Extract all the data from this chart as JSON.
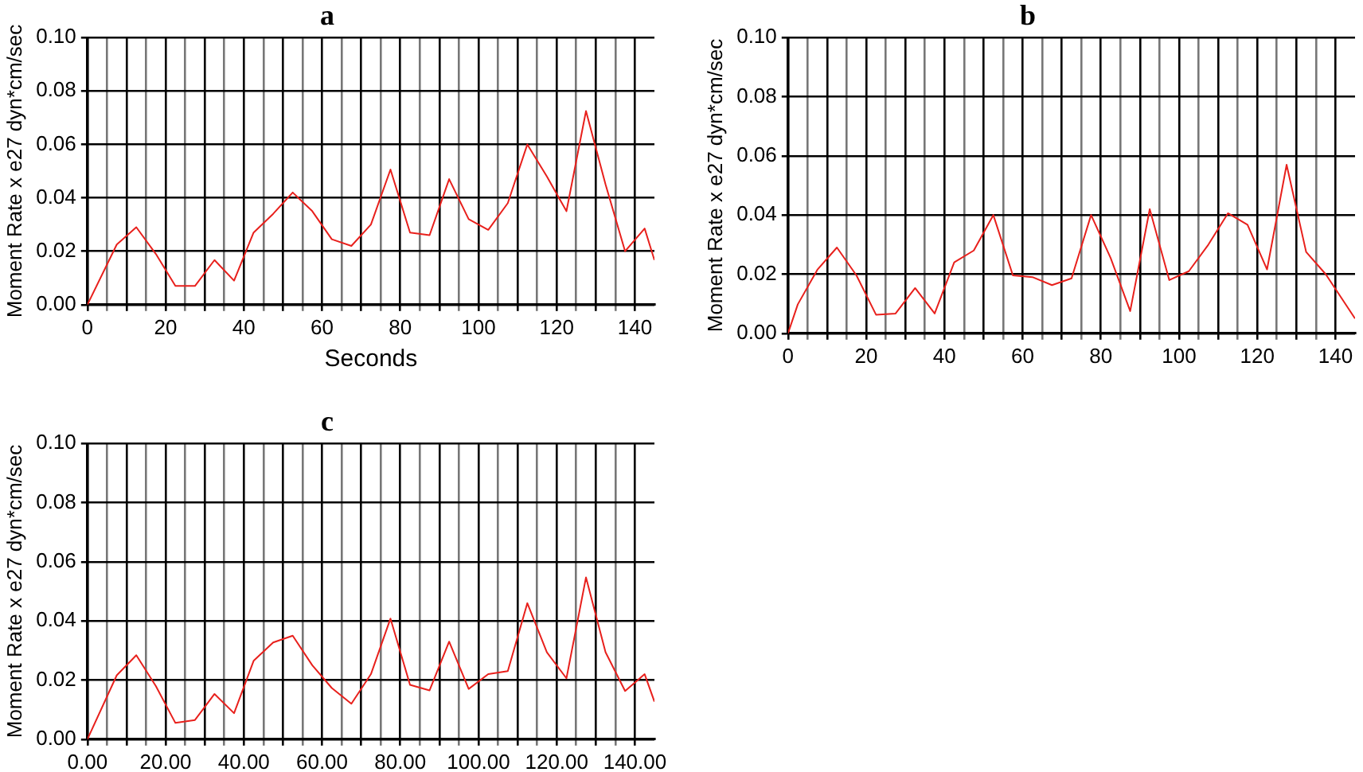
{
  "chart_data": [
    {
      "type": "line",
      "title": "a",
      "xlabel": "Seconds",
      "ylabel": "Moment Rate x e27 dyn*cm/sec",
      "x": [
        0,
        7.5,
        12.5,
        17.5,
        22.5,
        27.5,
        32.5,
        37.5,
        42.5,
        47.5,
        52.5,
        57.5,
        62.5,
        67.5,
        72.5,
        77.5,
        82.5,
        87.5,
        92.5,
        97.5,
        102.5,
        107.5,
        112.5,
        117.5,
        122.5,
        127.5,
        132.5,
        137.5,
        142.5,
        145
      ],
      "series": [
        {
          "color": "#e8201c",
          "values": [
            0,
            0.0225,
            0.029,
            0.019,
            0.007,
            0.007,
            0.0167,
            0.009,
            0.027,
            0.034,
            0.042,
            0.035,
            0.0245,
            0.022,
            0.03,
            0.0506,
            0.027,
            0.026,
            0.047,
            0.032,
            0.028,
            0.038,
            0.06,
            0.048,
            0.035,
            0.0725,
            0.045,
            0.02,
            0.0285,
            0.0167
          ]
        }
      ],
      "xlim": [
        0,
        145
      ],
      "xticks": [
        0,
        {
          "value": 5,
          "label": null
        },
        {
          "value": 10,
          "label": null
        },
        {
          "value": 15,
          "label": null
        },
        20,
        {
          "value": 25,
          "label": null
        },
        {
          "value": 30,
          "label": null
        },
        {
          "value": 35,
          "label": null
        },
        40,
        {
          "value": 45,
          "label": null
        },
        {
          "value": 50,
          "label": null
        },
        {
          "value": 55,
          "label": null
        },
        60,
        {
          "value": 65,
          "label": null
        },
        {
          "value": 70,
          "label": null
        },
        {
          "value": 75,
          "label": null
        },
        80,
        {
          "value": 85,
          "label": null
        },
        {
          "value": 90,
          "label": null
        },
        {
          "value": 95,
          "label": null
        },
        100,
        {
          "value": 105,
          "label": null
        },
        {
          "value": 110,
          "label": null
        },
        {
          "value": 115,
          "label": null
        },
        120,
        {
          "value": 125,
          "label": null
        },
        {
          "value": 130,
          "label": null
        },
        {
          "value": 135,
          "label": null
        },
        140
      ],
      "ylim": [
        0,
        0.1
      ],
      "yticks": [
        {
          "value": 0,
          "label": "0.00"
        },
        {
          "value": 0.02,
          "label": "0.02"
        },
        {
          "value": 0.04,
          "label": "0.04"
        },
        {
          "value": 0.06,
          "label": "0.06"
        },
        {
          "value": 0.08,
          "label": "0.08"
        },
        {
          "value": 0.1,
          "label": "0.10"
        }
      ],
      "grid": true,
      "marker": "none",
      "line_style": "solid"
    },
    {
      "type": "line",
      "title": "b",
      "ylabel": "Moment Rate x e27 dyn*cm/sec",
      "x": [
        0,
        2.5,
        7.5,
        12.5,
        17.5,
        22.5,
        27.5,
        32.5,
        37.5,
        42.5,
        47.5,
        52.5,
        57.5,
        62.5,
        67.5,
        72.5,
        77.5,
        82.5,
        87.5,
        92.5,
        97.5,
        102.5,
        107.5,
        112.5,
        117.5,
        122.5,
        127.5,
        132.5,
        137.5,
        145
      ],
      "series": [
        {
          "color": "#e8201c",
          "values": [
            0,
            0.0098,
            0.0215,
            0.029,
            0.0196,
            0.0063,
            0.0067,
            0.0153,
            0.0067,
            0.024,
            0.028,
            0.04,
            0.0196,
            0.019,
            0.0163,
            0.0186,
            0.04,
            0.0255,
            0.0075,
            0.042,
            0.018,
            0.021,
            0.03,
            0.0406,
            0.0367,
            0.0216,
            0.057,
            0.0275,
            0.02,
            0.005
          ]
        }
      ],
      "xlim": [
        0,
        145
      ],
      "xticks": [
        0,
        {
          "value": 5,
          "label": null
        },
        {
          "value": 10,
          "label": null
        },
        {
          "value": 15,
          "label": null
        },
        20,
        {
          "value": 25,
          "label": null
        },
        {
          "value": 30,
          "label": null
        },
        {
          "value": 35,
          "label": null
        },
        40,
        {
          "value": 45,
          "label": null
        },
        {
          "value": 50,
          "label": null
        },
        {
          "value": 55,
          "label": null
        },
        60,
        {
          "value": 65,
          "label": null
        },
        {
          "value": 70,
          "label": null
        },
        {
          "value": 75,
          "label": null
        },
        80,
        {
          "value": 85,
          "label": null
        },
        {
          "value": 90,
          "label": null
        },
        {
          "value": 95,
          "label": null
        },
        100,
        {
          "value": 105,
          "label": null
        },
        {
          "value": 110,
          "label": null
        },
        {
          "value": 115,
          "label": null
        },
        120,
        {
          "value": 125,
          "label": null
        },
        {
          "value": 130,
          "label": null
        },
        {
          "value": 135,
          "label": null
        },
        140
      ],
      "ylim": [
        0,
        0.1
      ],
      "yticks": [
        {
          "value": 0,
          "label": "0.00"
        },
        {
          "value": 0.02,
          "label": "0.02"
        },
        {
          "value": 0.04,
          "label": "0.04"
        },
        {
          "value": 0.06,
          "label": "0.06"
        },
        {
          "value": 0.08,
          "label": "0.08"
        },
        {
          "value": 0.1,
          "label": "0.10"
        }
      ],
      "grid": true,
      "marker": "none",
      "line_style": "solid"
    },
    {
      "type": "line",
      "title": "c",
      "ylabel": "Moment Rate x e27 dyn*cm/sec",
      "x": [
        0,
        7.5,
        12.5,
        17.5,
        22.5,
        27.5,
        32.5,
        37.5,
        42.5,
        47.5,
        52.5,
        57.5,
        62.5,
        67.5,
        72.5,
        77.5,
        82.5,
        87.5,
        92.5,
        97.5,
        102.5,
        107.5,
        112.5,
        117.5,
        122.5,
        127.5,
        132.5,
        137.5,
        142.5,
        145
      ],
      "series": [
        {
          "color": "#e8201c",
          "values": [
            0,
            0.0216,
            0.0284,
            0.018,
            0.0055,
            0.0065,
            0.0153,
            0.0088,
            0.0265,
            0.0327,
            0.035,
            0.025,
            0.0173,
            0.012,
            0.022,
            0.0408,
            0.0184,
            0.0165,
            0.033,
            0.017,
            0.022,
            0.023,
            0.046,
            0.0294,
            0.0206,
            0.0547,
            0.0294,
            0.0163,
            0.022,
            0.0127
          ]
        }
      ],
      "xlim": [
        0,
        145
      ],
      "xticks": [
        {
          "value": 0,
          "label": "0.00"
        },
        {
          "value": 5,
          "label": null
        },
        {
          "value": 10,
          "label": null
        },
        {
          "value": 15,
          "label": null
        },
        {
          "value": 20,
          "label": "20.00"
        },
        {
          "value": 25,
          "label": null
        },
        {
          "value": 30,
          "label": null
        },
        {
          "value": 35,
          "label": null
        },
        {
          "value": 40,
          "label": "40.00"
        },
        {
          "value": 45,
          "label": null
        },
        {
          "value": 50,
          "label": null
        },
        {
          "value": 55,
          "label": null
        },
        {
          "value": 60,
          "label": "60.00"
        },
        {
          "value": 65,
          "label": null
        },
        {
          "value": 70,
          "label": null
        },
        {
          "value": 75,
          "label": null
        },
        {
          "value": 80,
          "label": "80.00"
        },
        {
          "value": 85,
          "label": null
        },
        {
          "value": 90,
          "label": null
        },
        {
          "value": 95,
          "label": null
        },
        {
          "value": 100,
          "label": "100.00"
        },
        {
          "value": 105,
          "label": null
        },
        {
          "value": 110,
          "label": null
        },
        {
          "value": 115,
          "label": null
        },
        {
          "value": 120,
          "label": "120.00"
        },
        {
          "value": 125,
          "label": null
        },
        {
          "value": 130,
          "label": null
        },
        {
          "value": 135,
          "label": null
        },
        {
          "value": 140,
          "label": "140.00"
        }
      ],
      "ylim": [
        0,
        0.1
      ],
      "yticks": [
        {
          "value": 0,
          "label": "0.00"
        },
        {
          "value": 0.02,
          "label": "0.02"
        },
        {
          "value": 0.04,
          "label": "0.04"
        },
        {
          "value": 0.06,
          "label": "0.06"
        },
        {
          "value": 0.08,
          "label": "0.08"
        },
        {
          "value": 0.1,
          "label": "0.10"
        }
      ],
      "grid": true,
      "marker": "none",
      "line_style": "solid"
    }
  ]
}
